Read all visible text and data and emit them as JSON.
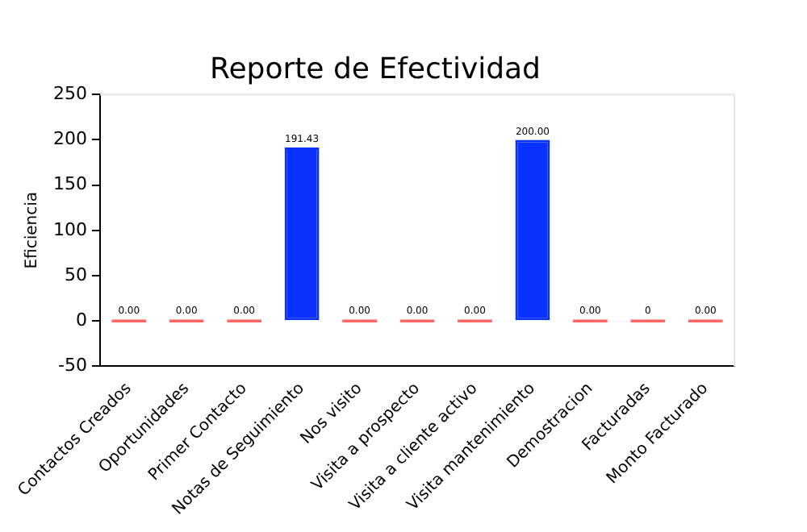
{
  "chart_data": {
    "type": "bar",
    "title": "Reporte de Efectividad",
    "ylabel": "Eficiencia",
    "categories": [
      "Contactos Creados",
      "Oportunidades",
      "Primer Contacto",
      "Notas de Seguimiento",
      "Nos visito",
      "Visita a prospecto",
      "Visita a cliente activo",
      "Visita mantenimiento",
      "Demostracion",
      "Facturadas",
      "Monto Facturado"
    ],
    "values": [
      0,
      0,
      0,
      191.43,
      0,
      0,
      0,
      200,
      0,
      0,
      0
    ],
    "value_labels": [
      "0.00",
      "0.00",
      "0.00",
      "191.43",
      "0.00",
      "0.00",
      "0.00",
      "200.00",
      "0.00",
      "0",
      "0.00"
    ],
    "colors": [
      "#ff6666",
      "#ff6666",
      "#ff6666",
      "#0a32ff",
      "#ff6666",
      "#ff6666",
      "#ff6666",
      "#0a32ff",
      "#ff6666",
      "#ff6666",
      "#ff6666"
    ],
    "ylim": [
      -50,
      250
    ],
    "yticks": [
      -50,
      0,
      50,
      100,
      150,
      200,
      250
    ],
    "grid": false,
    "legend": false
  }
}
